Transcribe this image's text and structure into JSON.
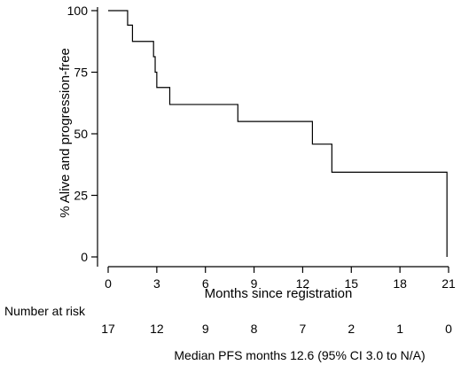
{
  "chart_data": {
    "type": "line",
    "subtype": "kaplan-meier-step",
    "title": "",
    "xlabel": "Months since registration",
    "ylabel": "% Alive and progression-free",
    "xlim": [
      0,
      21
    ],
    "ylim": [
      0,
      100
    ],
    "x_ticks": [
      0,
      3,
      6,
      9,
      12,
      15,
      18,
      21
    ],
    "y_ticks": [
      0,
      25,
      50,
      75,
      100
    ],
    "grid": false,
    "legend": "none",
    "line_color": "#000000",
    "series": [
      {
        "x": [
          0,
          1.2,
          1.5,
          2.8,
          2.9,
          3.0,
          3.2,
          3.8,
          8.0,
          12.6,
          13.8,
          20.9,
          20.9
        ],
        "y": [
          100,
          94.1,
          87.5,
          81.3,
          75.0,
          68.8,
          68.8,
          61.9,
          55.0,
          45.8,
          34.4,
          34.4,
          0
        ]
      }
    ],
    "risk_table": {
      "label": "Number at risk",
      "times": [
        0,
        3,
        6,
        9,
        12,
        15,
        18,
        21
      ],
      "counts": [
        "17",
        "12",
        "9",
        "8",
        "7",
        "2",
        "1",
        "0"
      ]
    },
    "footer": "Median PFS months 12.6 (95% CI 3.0 to N/A)"
  }
}
